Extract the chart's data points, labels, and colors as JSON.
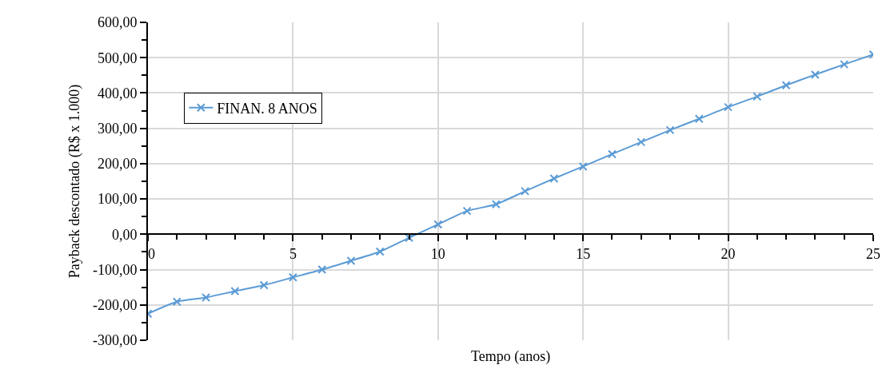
{
  "chart_data": {
    "type": "line",
    "xlabel": "Tempo (anos)",
    "ylabel": "Payback descontado (R$ x 1.000)",
    "x": [
      0,
      1,
      2,
      3,
      4,
      5,
      6,
      7,
      8,
      9,
      10,
      11,
      12,
      13,
      14,
      15,
      16,
      17,
      18,
      19,
      20,
      21,
      22,
      23,
      24,
      25
    ],
    "series": [
      {
        "name": "FINAN. 8 ANOS",
        "color": "#5b9bd5",
        "values": [
          -225,
          -191,
          -179,
          -161,
          -144,
          -122,
          -100,
          -75,
          -49,
          -10,
          28,
          66,
          85,
          122,
          158,
          192,
          227,
          261,
          295,
          327,
          360,
          390,
          422,
          452,
          481,
          509
        ]
      }
    ],
    "xlim": [
      0,
      25
    ],
    "xticks": [
      0,
      5,
      10,
      15,
      20,
      25
    ],
    "ylim": [
      -300,
      600
    ],
    "yticks": [
      {
        "value": -300,
        "label": "-300,00"
      },
      {
        "value": -200,
        "label": "-200,00"
      },
      {
        "value": -100,
        "label": "-100,00"
      },
      {
        "value": 0,
        "label": "0,00"
      },
      {
        "value": 100,
        "label": "100,00"
      },
      {
        "value": 200,
        "label": "200,00"
      },
      {
        "value": 300,
        "label": "300,00"
      },
      {
        "value": 400,
        "label": "400,00"
      },
      {
        "value": 500,
        "label": "500,00"
      },
      {
        "value": 600,
        "label": "600,00"
      }
    ],
    "grid": true,
    "legend": "top left",
    "marker": "cross",
    "line_style": "solid"
  }
}
